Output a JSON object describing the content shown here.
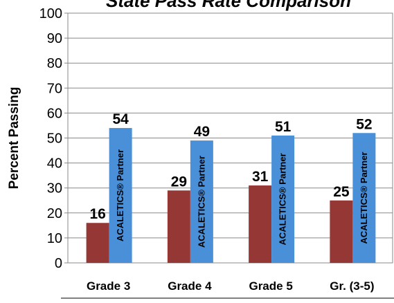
{
  "chart_data": {
    "type": "bar",
    "title": "State Pass Rate Comparison",
    "categories": [
      "Grade 3",
      "Grade 4",
      "Grade 5",
      "Gr. (3-5)"
    ],
    "series": [
      {
        "name": "",
        "values": [
          16,
          29,
          31,
          25
        ],
        "color": "#953735"
      },
      {
        "name": "ACALETICS® Partner",
        "values": [
          54,
          49,
          51,
          52
        ],
        "color": "#4a90d9"
      }
    ],
    "xlabel": "",
    "ylabel": "Percent Passing",
    "ylim": [
      0,
      100
    ],
    "yticks": [
      0,
      10,
      20,
      30,
      40,
      50,
      60,
      70,
      80,
      90,
      100
    ],
    "grid": true,
    "data_labels": true,
    "in_bar_label": "ACALETICS® Partner"
  }
}
